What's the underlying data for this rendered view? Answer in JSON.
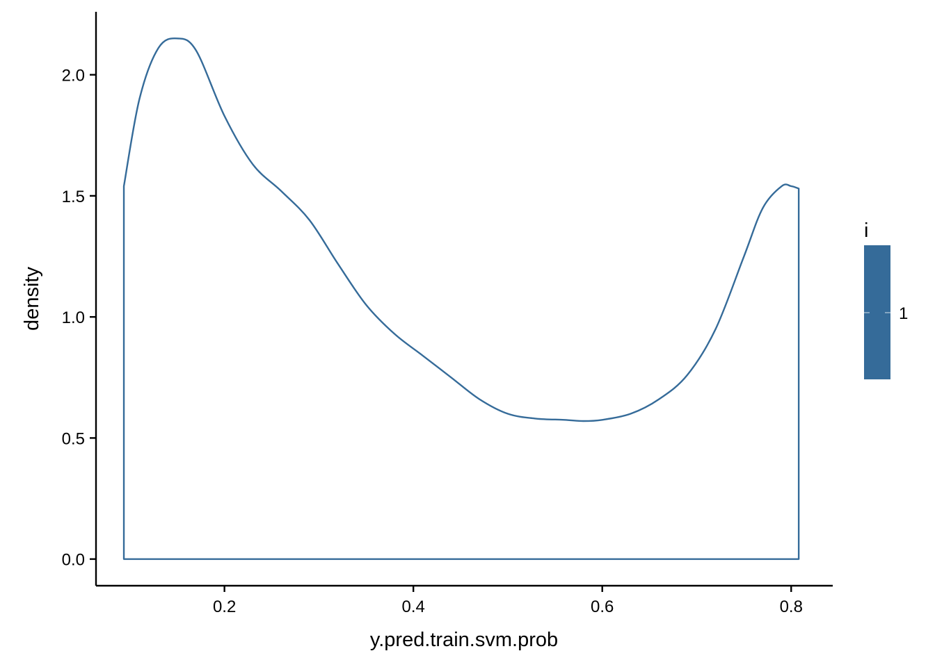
{
  "chart_data": {
    "type": "area",
    "title": "",
    "xlabel": "y.pred.train.svm.prob",
    "ylabel": "density",
    "xlim": [
      0.064,
      0.844
    ],
    "ylim": [
      -0.11,
      2.26
    ],
    "x_ticks": [
      0.2,
      0.4,
      0.6,
      0.8
    ],
    "x_tick_labels": [
      "0.2",
      "0.4",
      "0.6",
      "0.8"
    ],
    "y_ticks": [
      0.0,
      0.5,
      1.0,
      1.5,
      2.0
    ],
    "y_tick_labels": [
      "0.0",
      "0.5",
      "1.0",
      "1.5",
      "2.0"
    ],
    "grid": false,
    "legend_position": "right",
    "legend": {
      "title": "i",
      "entries": [
        "1"
      ]
    },
    "colors": {
      "outline": "#356b99",
      "legend_fill": "#356b99"
    },
    "series": [
      {
        "name": "1",
        "x": [
          0.0935,
          0.11,
          0.13,
          0.15,
          0.17,
          0.2,
          0.23,
          0.26,
          0.29,
          0.32,
          0.35,
          0.38,
          0.41,
          0.44,
          0.47,
          0.5,
          0.53,
          0.56,
          0.58,
          0.6,
          0.63,
          0.66,
          0.69,
          0.72,
          0.75,
          0.77,
          0.79,
          0.8,
          0.808
        ],
        "y": [
          1.54,
          1.9,
          2.11,
          2.15,
          2.1,
          1.83,
          1.63,
          1.52,
          1.4,
          1.22,
          1.05,
          0.93,
          0.84,
          0.75,
          0.66,
          0.6,
          0.58,
          0.575,
          0.57,
          0.575,
          0.6,
          0.66,
          0.76,
          0.95,
          1.25,
          1.45,
          1.54,
          1.54,
          1.53
        ]
      }
    ]
  }
}
